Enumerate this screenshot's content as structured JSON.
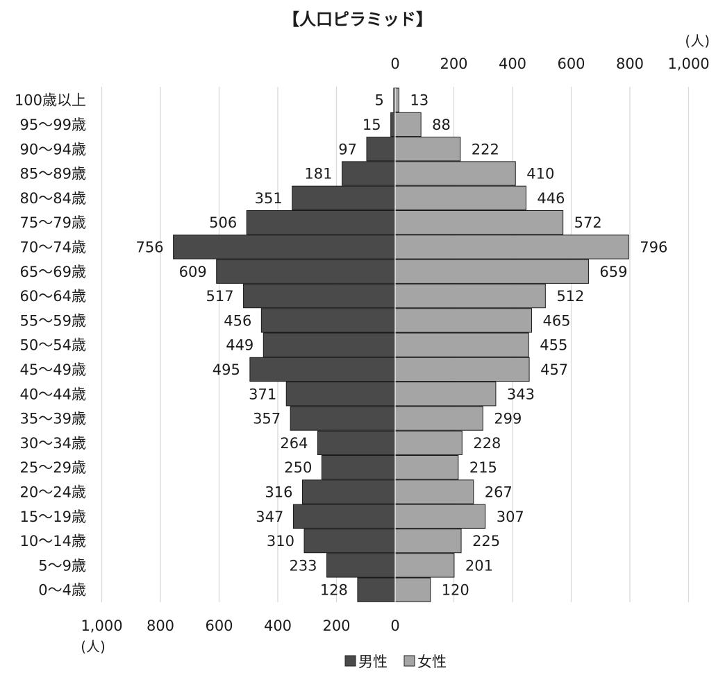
{
  "chart_data": {
    "type": "bar",
    "title": "【人口ピラミッド】",
    "unit_label": "(人)",
    "categories": [
      "100歳以上",
      "95～99歳",
      "90～94歳",
      "85～89歳",
      "80～84歳",
      "75～79歳",
      "70～74歳",
      "65～69歳",
      "60～64歳",
      "55～59歳",
      "50～54歳",
      "45～49歳",
      "40～44歳",
      "35～39歳",
      "30～34歳",
      "25～29歳",
      "20～24歳",
      "15～19歳",
      "10～14歳",
      "5～9歳",
      "0～4歳"
    ],
    "series": [
      {
        "name": "男性",
        "color": "#4a4a4a",
        "values": [
          5,
          15,
          97,
          181,
          351,
          506,
          756,
          609,
          517,
          456,
          449,
          495,
          371,
          357,
          264,
          250,
          316,
          347,
          310,
          233,
          128
        ]
      },
      {
        "name": "女性",
        "color": "#a5a5a5",
        "values": [
          13,
          88,
          222,
          410,
          446,
          572,
          796,
          659,
          512,
          465,
          455,
          457,
          343,
          299,
          228,
          215,
          267,
          307,
          225,
          201,
          120
        ]
      }
    ],
    "left_axis": {
      "ticks": [
        1000,
        800,
        600,
        400,
        200,
        0
      ],
      "tick_labels": [
        "1,000",
        "800",
        "600",
        "400",
        "200",
        "0"
      ]
    },
    "right_axis": {
      "ticks": [
        0,
        200,
        400,
        600,
        800,
        1000
      ],
      "tick_labels": [
        "0",
        "200",
        "400",
        "600",
        "800",
        "1,000"
      ]
    },
    "xlim": [
      0,
      1000
    ],
    "grid": true,
    "legend_position": "bottom"
  }
}
